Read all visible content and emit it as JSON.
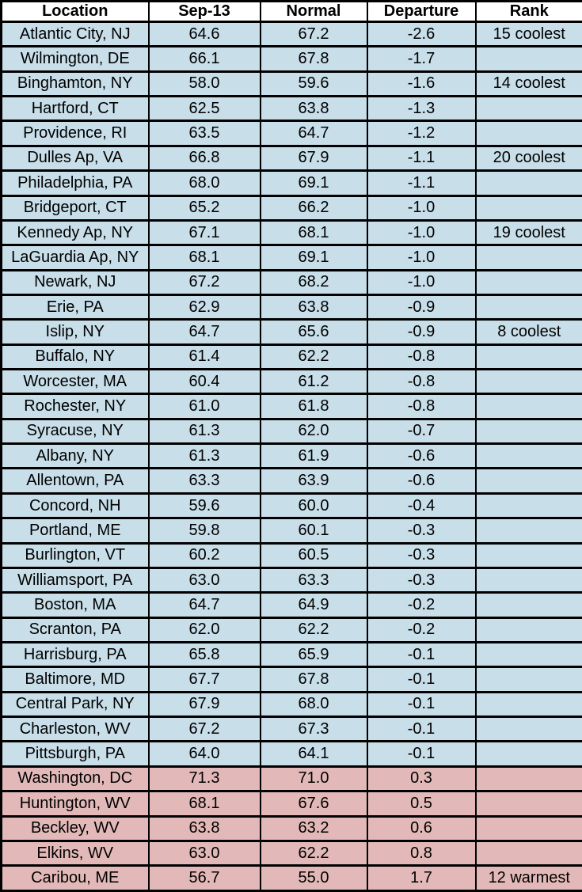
{
  "colors": {
    "cool_row_bg": "#C8DEE9",
    "warm_row_bg": "#E2B9B8",
    "border": "#000000",
    "header_bg": "#FFFFFF"
  },
  "chart_data": {
    "type": "table",
    "title": "",
    "columns": [
      "Location",
      "Sep-13",
      "Normal",
      "Departure",
      "Rank"
    ],
    "rows": [
      {
        "tone": "cool",
        "cells": [
          "Atlantic City, NJ",
          "64.6",
          "67.2",
          "-2.6",
          "15 coolest"
        ]
      },
      {
        "tone": "cool",
        "cells": [
          "Wilmington, DE",
          "66.1",
          "67.8",
          "-1.7",
          ""
        ]
      },
      {
        "tone": "cool",
        "cells": [
          "Binghamton, NY",
          "58.0",
          "59.6",
          "-1.6",
          "14 coolest"
        ]
      },
      {
        "tone": "cool",
        "cells": [
          "Hartford, CT",
          "62.5",
          "63.8",
          "-1.3",
          ""
        ]
      },
      {
        "tone": "cool",
        "cells": [
          "Providence, RI",
          "63.5",
          "64.7",
          "-1.2",
          ""
        ]
      },
      {
        "tone": "cool",
        "cells": [
          "Dulles Ap, VA",
          "66.8",
          "67.9",
          "-1.1",
          "20 coolest"
        ]
      },
      {
        "tone": "cool",
        "cells": [
          "Philadelphia, PA",
          "68.0",
          "69.1",
          "-1.1",
          ""
        ]
      },
      {
        "tone": "cool",
        "cells": [
          "Bridgeport, CT",
          "65.2",
          "66.2",
          "-1.0",
          ""
        ]
      },
      {
        "tone": "cool",
        "cells": [
          "Kennedy Ap, NY",
          "67.1",
          "68.1",
          "-1.0",
          "19 coolest"
        ]
      },
      {
        "tone": "cool",
        "cells": [
          "LaGuardia Ap, NY",
          "68.1",
          "69.1",
          "-1.0",
          ""
        ]
      },
      {
        "tone": "cool",
        "cells": [
          "Newark, NJ",
          "67.2",
          "68.2",
          "-1.0",
          ""
        ]
      },
      {
        "tone": "cool",
        "cells": [
          "Erie, PA",
          "62.9",
          "63.8",
          "-0.9",
          ""
        ]
      },
      {
        "tone": "cool",
        "cells": [
          "Islip, NY",
          "64.7",
          "65.6",
          "-0.9",
          "8 coolest"
        ]
      },
      {
        "tone": "cool",
        "cells": [
          "Buffalo, NY",
          "61.4",
          "62.2",
          "-0.8",
          ""
        ]
      },
      {
        "tone": "cool",
        "cells": [
          "Worcester, MA",
          "60.4",
          "61.2",
          "-0.8",
          ""
        ]
      },
      {
        "tone": "cool",
        "cells": [
          "Rochester, NY",
          "61.0",
          "61.8",
          "-0.8",
          ""
        ]
      },
      {
        "tone": "cool",
        "cells": [
          "Syracuse, NY",
          "61.3",
          "62.0",
          "-0.7",
          ""
        ]
      },
      {
        "tone": "cool",
        "cells": [
          "Albany, NY",
          "61.3",
          "61.9",
          "-0.6",
          ""
        ]
      },
      {
        "tone": "cool",
        "cells": [
          "Allentown, PA",
          "63.3",
          "63.9",
          "-0.6",
          ""
        ]
      },
      {
        "tone": "cool",
        "cells": [
          "Concord, NH",
          "59.6",
          "60.0",
          "-0.4",
          ""
        ]
      },
      {
        "tone": "cool",
        "cells": [
          "Portland, ME",
          "59.8",
          "60.1",
          "-0.3",
          ""
        ]
      },
      {
        "tone": "cool",
        "cells": [
          "Burlington, VT",
          "60.2",
          "60.5",
          "-0.3",
          ""
        ]
      },
      {
        "tone": "cool",
        "cells": [
          "Williamsport, PA",
          "63.0",
          "63.3",
          "-0.3",
          ""
        ]
      },
      {
        "tone": "cool",
        "cells": [
          "Boston, MA",
          "64.7",
          "64.9",
          "-0.2",
          ""
        ]
      },
      {
        "tone": "cool",
        "cells": [
          "Scranton, PA",
          "62.0",
          "62.2",
          "-0.2",
          ""
        ]
      },
      {
        "tone": "cool",
        "cells": [
          "Harrisburg, PA",
          "65.8",
          "65.9",
          "-0.1",
          ""
        ]
      },
      {
        "tone": "cool",
        "cells": [
          "Baltimore, MD",
          "67.7",
          "67.8",
          "-0.1",
          ""
        ]
      },
      {
        "tone": "cool",
        "cells": [
          "Central Park, NY",
          "67.9",
          "68.0",
          "-0.1",
          ""
        ]
      },
      {
        "tone": "cool",
        "cells": [
          "Charleston, WV",
          "67.2",
          "67.3",
          "-0.1",
          ""
        ]
      },
      {
        "tone": "cool",
        "cells": [
          "Pittsburgh, PA",
          "64.0",
          "64.1",
          "-0.1",
          ""
        ]
      },
      {
        "tone": "warm",
        "cells": [
          "Washington, DC",
          "71.3",
          "71.0",
          "0.3",
          ""
        ]
      },
      {
        "tone": "warm",
        "cells": [
          "Huntington, WV",
          "68.1",
          "67.6",
          "0.5",
          ""
        ]
      },
      {
        "tone": "warm",
        "cells": [
          "Beckley, WV",
          "63.8",
          "63.2",
          "0.6",
          ""
        ]
      },
      {
        "tone": "warm",
        "cells": [
          "Elkins, WV",
          "63.0",
          "62.2",
          "0.8",
          ""
        ]
      },
      {
        "tone": "warm",
        "cells": [
          "Caribou, ME",
          "56.7",
          "55.0",
          "1.7",
          "12 warmest"
        ]
      }
    ]
  }
}
